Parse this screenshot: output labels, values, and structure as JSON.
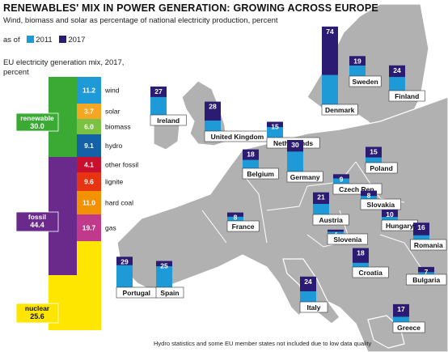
{
  "title": "RENEWABLES' MIX IN POWER GENERATION: GROWING ACROSS EUROPE",
  "subtitle": "Wind, biomass and solar as percentage of national electricity production, percent",
  "legend": {
    "prefix": "as of",
    "items": [
      {
        "label": "2011",
        "color": "#1e9ad6"
      },
      {
        "label": "2017",
        "color": "#2b1b72"
      }
    ]
  },
  "mix": {
    "title": "EU electricity generation mix, 2017, percent",
    "segments": [
      {
        "label": "wind",
        "value": "11.2",
        "color": "#1e9ad6"
      },
      {
        "label": "solar",
        "value": "3.7",
        "color": "#f5a623"
      },
      {
        "label": "biomass",
        "value": "6.0",
        "color": "#7cc242"
      },
      {
        "label": "hydro",
        "value": "9.1",
        "color": "#1561a8"
      },
      {
        "label": "other fossil",
        "value": "4.1",
        "color": "#c8102e"
      },
      {
        "label": "lignite",
        "value": "9.6",
        "color": "#e63312"
      },
      {
        "label": "hard coal",
        "value": "11.0",
        "color": "#f39200"
      },
      {
        "label": "gas",
        "value": "19.7",
        "color": "#c0398a"
      },
      {
        "label": "",
        "value": "",
        "color": "#ffe600"
      }
    ],
    "groups": [
      {
        "label": "renewable",
        "value": "30.0",
        "color": "#3aaa35"
      },
      {
        "label": "fossil",
        "value": "44.4",
        "color": "#6a2a8c"
      },
      {
        "label": "nuclear",
        "value": "25.6",
        "color": "#ffe600"
      }
    ]
  },
  "chart_data": {
    "type": "bar",
    "title": "RENEWABLES' MIX IN POWER GENERATION: GROWING ACROSS EUROPE",
    "ylabel": "percent",
    "categories": [
      "Ireland",
      "United Kingdom",
      "Belgium",
      "Netherlands",
      "Germany",
      "Denmark",
      "Sweden",
      "Finland",
      "Poland",
      "Czech Rep.",
      "Slovakia",
      "Austria",
      "France",
      "Slovenia",
      "Hungary",
      "Romania",
      "Portugal",
      "Spain",
      "Croatia",
      "Italy",
      "Bulgaria",
      "Greece"
    ],
    "series": [
      {
        "name": "2011",
        "values": [
          17,
          10,
          8,
          10,
          19,
          28,
          10,
          13,
          5,
          5,
          3,
          10,
          4,
          2,
          3,
          4,
          21,
          20,
          4,
          10,
          2,
          5
        ]
      },
      {
        "name": "2017",
        "values": [
          27,
          28,
          18,
          15,
          30,
          74,
          19,
          24,
          15,
          9,
          8,
          21,
          8,
          4,
          10,
          16,
          29,
          25,
          18,
          24,
          7,
          17
        ]
      }
    ],
    "data_labels": [
      "27",
      "28",
      "18",
      "15",
      "30",
      "74",
      "19",
      "24",
      "15",
      "9",
      "8",
      "21",
      "8",
      "4",
      "10",
      "16",
      "29",
      "25",
      "18",
      "24",
      "7",
      "17"
    ]
  },
  "footnote": "Hydro statistics and some EU member states not included due to low data quality"
}
